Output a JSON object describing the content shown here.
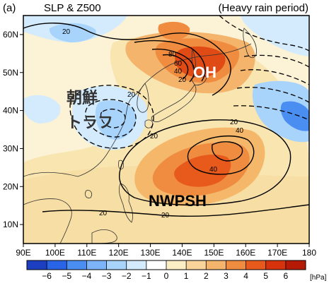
{
  "panel": {
    "label": "(a)",
    "title": "SLP & Z500",
    "period": "(Heavy rain period)"
  },
  "map": {
    "lon_ticks": [
      "90E",
      "100E",
      "110E",
      "120E",
      "130E",
      "140E",
      "150E",
      "160E",
      "170E",
      "180"
    ],
    "lat_ticks": [
      "10N",
      "20N",
      "30N",
      "40N",
      "50N",
      "60N"
    ],
    "lon_range": [
      90,
      180
    ],
    "lat_range": [
      5,
      65
    ]
  },
  "labels": {
    "oh": "OH",
    "nwpsh": "NWPSH",
    "korea_trough_line1": "朝鮮",
    "korea_trough_line2": "トラフ"
  },
  "contour_labels": [
    "20",
    "20",
    "80",
    "60",
    "40",
    "20",
    "20",
    "20",
    "40",
    "40",
    "20",
    "20"
  ],
  "colorbar": {
    "ticks": [
      "−6",
      "−5",
      "−4",
      "−3",
      "−2",
      "−1",
      "0",
      "1",
      "2",
      "3",
      "4",
      "5",
      "6"
    ],
    "unit": "[hPa]",
    "colors": [
      "#1c3fc2",
      "#2a64e6",
      "#4b8ef2",
      "#7cb4f7",
      "#a8d3fa",
      "#d3ebfc",
      "#ffffff",
      "#fbeec5",
      "#f8d49b",
      "#f5b46c",
      "#f08c3f",
      "#e85a1c",
      "#d6330c",
      "#b51a06"
    ]
  }
}
